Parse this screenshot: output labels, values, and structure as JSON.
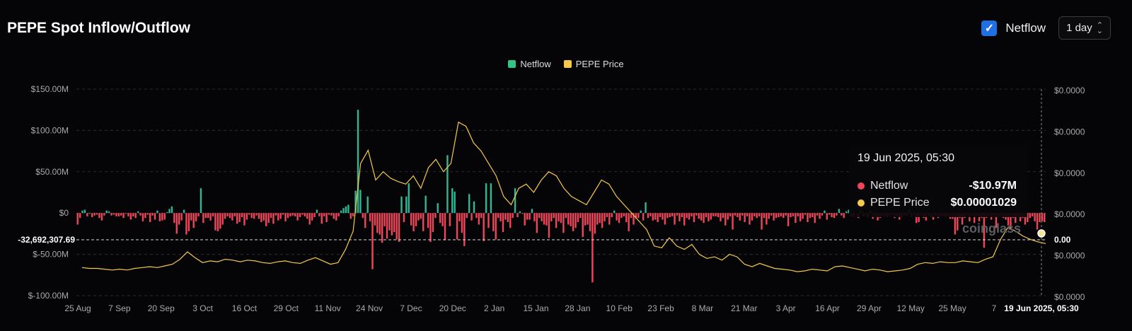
{
  "page": {
    "title": "PEPE Spot Inflow/Outflow",
    "netflow_toggle_label": "Netflow",
    "netflow_checked": true,
    "period": "1 day",
    "watermark": "coinglass"
  },
  "tooltip": {
    "title": "19 Jun 2025, 05:30",
    "rows": [
      {
        "name": "Netflow",
        "value": "-$10.97M",
        "color": "#f0465a"
      },
      {
        "name": "PEPE Price",
        "value": "$0.00001029",
        "color": "#f5c84c"
      }
    ]
  },
  "crosshair": {
    "left_label": "-32,692,307.69",
    "right_label": "0.00",
    "x_label": "19 Jun 2025, 05:30"
  },
  "chart_data": {
    "type": "bar",
    "series": [
      {
        "name": "Netflow",
        "type": "bar",
        "unit": "$M",
        "color_positive": "#2eb894",
        "color_negative": "#f0465a",
        "values": [
          -14,
          -6,
          3,
          4,
          -4,
          0,
          -5,
          -3,
          -2,
          -6,
          -9,
          -3,
          3,
          2,
          -3,
          -2,
          -4,
          -4,
          -3,
          -6,
          -1,
          -4,
          -8,
          -4,
          -6,
          2,
          -3,
          -10,
          -6,
          -2,
          -11,
          -3,
          -8,
          3,
          -10,
          -9,
          -8,
          1,
          5,
          8,
          -12,
          -25,
          -14,
          -9,
          4,
          -26,
          -22,
          -9,
          -18,
          -10,
          -4,
          30,
          -12,
          -6,
          -6,
          -9,
          -4,
          -21,
          -22,
          -19,
          -14,
          -7,
          -4,
          -6,
          -9,
          -4,
          -13,
          -11,
          -5,
          -15,
          -8,
          -2,
          -6,
          -7,
          -3,
          -7,
          -11,
          -9,
          -16,
          -12,
          -6,
          -13,
          -3,
          -9,
          -7,
          -2,
          -10,
          -6,
          -4,
          -3,
          -4,
          -9,
          -5,
          -2,
          -4,
          -7,
          -14,
          -9,
          -5,
          4,
          -4,
          -13,
          -4,
          -11,
          -2,
          -3,
          -7,
          -9,
          -4,
          3,
          6,
          8,
          10,
          -7,
          -4,
          27,
          125,
          28,
          -6,
          -18,
          20,
          -10,
          -68,
          -15,
          -24,
          -26,
          -36,
          -16,
          -31,
          -21,
          -27,
          -23,
          -32,
          -35,
          20,
          -11,
          20,
          36,
          -15,
          -22,
          -16,
          -9,
          -7,
          -22,
          21,
          -18,
          -35,
          -23,
          -6,
          12,
          -12,
          -16,
          -33,
          70,
          -16,
          30,
          26,
          -32,
          -10,
          -24,
          -40,
          -6,
          23,
          -9,
          14,
          -6,
          -14,
          -6,
          -34,
          36,
          -18,
          36,
          -22,
          -32,
          -6,
          -10,
          -23,
          -8,
          -11,
          -18,
          -6,
          30,
          -5,
          2,
          -1,
          -15,
          -8,
          -8,
          5,
          -10,
          -24,
          -6,
          -10,
          -14,
          -15,
          -30,
          -10,
          -6,
          -18,
          -10,
          -12,
          -24,
          -6,
          -14,
          -16,
          -22,
          -18,
          -11,
          -6,
          -29,
          -15,
          -14,
          -22,
          -84,
          -25,
          -14,
          -12,
          -18,
          -10,
          -5,
          -14,
          -5,
          3,
          -9,
          -12,
          -6,
          -4,
          -11,
          -22,
          -6,
          -14,
          -7,
          -6,
          3,
          -9,
          13,
          -6,
          -4,
          -9,
          -8,
          -11,
          -5,
          -8,
          -14,
          -6,
          -5,
          -4,
          -14,
          -3,
          -10,
          -5,
          -15,
          -6,
          -8,
          -4,
          -11,
          -3,
          -7,
          -9,
          -12,
          -5,
          -10,
          -8,
          -4,
          -4,
          -5,
          -10,
          -6,
          -15,
          -8,
          -4,
          -20,
          -3,
          -5,
          -9,
          -3,
          -11,
          -4,
          -14,
          -9,
          -4,
          -6,
          -4,
          -20,
          -6,
          -14,
          -7,
          -3,
          -9,
          -6,
          -5,
          -4,
          -6,
          -3,
          -16,
          -5,
          -4,
          -12,
          -4,
          -10,
          -7,
          -2,
          -11,
          -6,
          -5,
          -12,
          -3,
          -7,
          -3,
          3,
          -8,
          -2,
          -5,
          -6,
          -3,
          5,
          -3,
          -6,
          2,
          4,
          -4,
          -5,
          -2,
          -6,
          3,
          -4,
          -3,
          -5,
          3,
          -7,
          -4,
          -9,
          -6,
          -3,
          -4,
          -5,
          -3,
          -2,
          -6,
          -4,
          -8,
          -5,
          -3,
          -3,
          4,
          -5,
          -2,
          -12,
          -11,
          -3,
          -6,
          -9,
          -3,
          -5,
          -8,
          -4,
          -6,
          -4,
          -3,
          -5,
          -4,
          -7,
          -7,
          -26,
          -21,
          -6,
          -14,
          -6,
          -3,
          -10,
          -3,
          -12,
          -4,
          -10,
          -6,
          -42,
          -6,
          -4,
          -8,
          -4,
          -18,
          -5,
          -3,
          -6,
          -8,
          -15,
          -20,
          -6,
          -12,
          -5,
          -10,
          -6,
          -14,
          -11,
          -6,
          -4,
          -10,
          -20,
          -11,
          -10,
          -11
        ]
      },
      {
        "name": "PEPE Price",
        "type": "line",
        "unit": "$",
        "color": "#f5c84c",
        "values": [
          7.4e-06,
          7.3e-06,
          7.3e-06,
          7.2e-06,
          7.1e-06,
          7.2e-06,
          7.1e-06,
          7.3e-06,
          7.4e-06,
          7.5e-06,
          7.4e-06,
          7.6e-06,
          7.8e-06,
          8.4e-06,
          9.3e-06,
          8.6e-06,
          8e-06,
          8.2e-06,
          8.1e-06,
          8.4e-06,
          8.3e-06,
          8.1e-06,
          8.3e-06,
          8.2e-06,
          8e-06,
          7.9e-06,
          8.1e-06,
          8.2e-06,
          8e-06,
          7.9e-06,
          8.3e-06,
          8.6e-06,
          8.2e-06,
          7.8e-06,
          8e-06,
          9.6e-06,
          1.18e-05,
          2e-05,
          2.16e-05,
          1.8e-05,
          1.9e-05,
          1.82e-05,
          1.78e-05,
          1.75e-05,
          1.85e-05,
          1.7e-05,
          1.95e-05,
          2.05e-05,
          1.9e-05,
          2e-05,
          2.5e-05,
          2.45e-05,
          2.25e-05,
          2.15e-05,
          2e-05,
          1.85e-05,
          1.6e-05,
          1.5e-05,
          1.7e-05,
          1.75e-05,
          1.65e-05,
          1.8e-05,
          1.9e-05,
          1.85e-05,
          1.7e-05,
          1.6e-05,
          1.55e-05,
          1.5e-05,
          1.65e-05,
          1.8e-05,
          1.75e-05,
          1.6e-05,
          1.5e-05,
          1.4e-05,
          1.3e-05,
          1.2e-05,
          1e-05,
          9.8e-06,
          1.1e-05,
          1e-05,
          9.6e-06,
          1.02e-05,
          9e-06,
          8.5e-06,
          8.7e-06,
          8.3e-06,
          9e-06,
          8.7e-06,
          7.8e-06,
          7.5e-06,
          7.9e-06,
          7.6e-06,
          7.3e-06,
          7.2e-06,
          7.1e-06,
          6.9e-06,
          7e-06,
          7.2e-06,
          7.1e-06,
          7e-06,
          7.5e-06,
          7.6e-06,
          7.4e-06,
          7.2e-06,
          7e-06,
          7.2e-06,
          7.1e-06,
          6.9e-06,
          7e-06,
          7.1e-06,
          7.3e-06,
          7.8e-06,
          8e-06,
          7.9e-06,
          8.1e-06,
          8e-06,
          8e-06,
          8.2e-06,
          8.1e-06,
          8e-06,
          8.4e-06,
          8.7e-06,
          1.08e-05,
          1.23e-05,
          1.18e-05,
          1.12e-05,
          1.08e-05,
          1.05e-05,
          1.03e-05
        ]
      }
    ],
    "x_ticks": [
      "25 Aug",
      "7 Sep",
      "20 Sep",
      "3 Oct",
      "16 Oct",
      "29 Oct",
      "11 Nov",
      "24 Nov",
      "7 Dec",
      "20 Dec",
      "2 Jan",
      "15 Jan",
      "28 Jan",
      "10 Feb",
      "23 Feb",
      "8 Mar",
      "21 Mar",
      "3 Apr",
      "16 Apr",
      "29 Apr",
      "12 May",
      "25 May",
      "7"
    ],
    "y_left_ticks": [
      "$150.00M",
      "$100.00M",
      "$50.00M",
      "$0",
      "$-50.00M",
      "$-100.00M"
    ],
    "y_left_values": [
      150,
      100,
      50,
      0,
      -50,
      -100
    ],
    "y_right_ticks": [
      "$0.0000",
      "$0.0000",
      "$0.0000",
      "$0.0000",
      "$0.0000",
      "$0.0000"
    ],
    "ylim_left": [
      -100,
      150
    ],
    "grid": true,
    "legend_position": "top-center"
  }
}
